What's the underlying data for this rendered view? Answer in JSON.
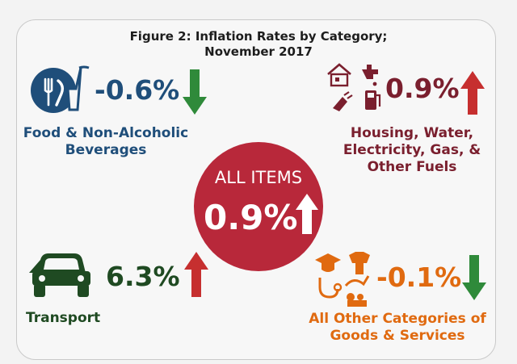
{
  "colors": {
    "food": "#1f4e7a",
    "housing": "#7a1f2e",
    "transport": "#1f4a22",
    "other": "#e06a10",
    "up_arrow": "#c62f2f",
    "down_arrow": "#2f8a3a",
    "circle": "#b8283a"
  },
  "chart_data": {
    "type": "table",
    "title": "Figure 2: Inflation Rates by Category;",
    "subtitle": "November 2017",
    "overall": {
      "label": "ALL ITEMS",
      "value": 0.9,
      "display": "0.9%",
      "direction": "up"
    },
    "categories": [
      {
        "key": "food",
        "name_line1": "Food & Non-Alcoholic",
        "name_line2": "Beverages",
        "name_line3": "",
        "value": -0.6,
        "display": "-0.6%",
        "direction": "down",
        "icon": "fork-knife-glass-icon"
      },
      {
        "key": "housing",
        "name_line1": "Housing, Water,",
        "name_line2": "Electricity, Gas, &",
        "name_line3": "Other Fuels",
        "value": 0.9,
        "display": "0.9%",
        "direction": "up",
        "icon": "house-utilities-icon"
      },
      {
        "key": "transport",
        "name_line1": "Transport",
        "name_line2": "",
        "name_line3": "",
        "value": 6.3,
        "display": "6.3%",
        "direction": "up",
        "icon": "car-icon"
      },
      {
        "key": "other",
        "name_line1": "All Other Categories of",
        "name_line2": "Goods & Services",
        "name_line3": "",
        "value": -0.1,
        "display": "-0.1%",
        "direction": "down",
        "icon": "goods-services-icon"
      }
    ]
  }
}
